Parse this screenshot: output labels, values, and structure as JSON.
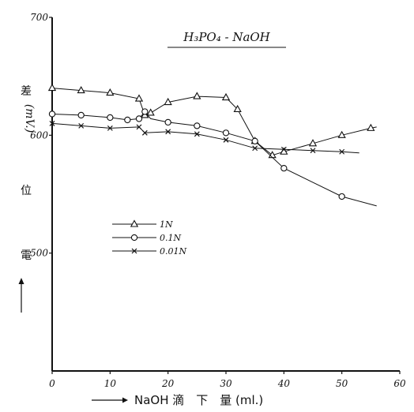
{
  "chart_data": {
    "type": "line",
    "title": "H₃PO₄ - NaOH",
    "ylabel_chars": [
      "差",
      "(mV.)",
      "位",
      "電"
    ],
    "xlabel": "NaOH 滴　下　量 (ml.)",
    "xlim": [
      0,
      60
    ],
    "ylim": [
      400,
      700
    ],
    "x_ticks": [
      0,
      10,
      20,
      30,
      40,
      50,
      60
    ],
    "y_ticks": [
      500,
      600,
      700
    ],
    "grid": false,
    "legend_position": "center-left",
    "series": [
      {
        "name": "1N",
        "marker": "triangle",
        "points": [
          [
            0,
            640
          ],
          [
            5,
            638
          ],
          [
            10,
            636
          ],
          [
            15,
            631
          ],
          [
            16,
            617
          ],
          [
            17,
            619
          ],
          [
            20,
            628
          ],
          [
            25,
            633
          ],
          [
            30,
            632
          ],
          [
            32,
            622
          ],
          [
            35,
            595
          ],
          [
            38,
            583
          ],
          [
            40,
            586
          ],
          [
            45,
            593
          ],
          [
            50,
            600
          ],
          [
            55,
            606
          ],
          [
            56,
            607
          ]
        ],
        "marked": [
          [
            0,
            640
          ],
          [
            5,
            638
          ],
          [
            10,
            636
          ],
          [
            15,
            631
          ],
          [
            16,
            617
          ],
          [
            17,
            619
          ],
          [
            20,
            628
          ],
          [
            25,
            633
          ],
          [
            30,
            632
          ],
          [
            32,
            622
          ],
          [
            35,
            595
          ],
          [
            38,
            583
          ],
          [
            40,
            586
          ],
          [
            45,
            593
          ],
          [
            50,
            600
          ],
          [
            55,
            606
          ]
        ]
      },
      {
        "name": "0.1N",
        "marker": "circle",
        "points": [
          [
            0,
            618
          ],
          [
            5,
            617
          ],
          [
            10,
            615
          ],
          [
            13,
            613
          ],
          [
            15,
            614
          ],
          [
            16,
            620
          ],
          [
            17,
            614
          ],
          [
            20,
            611
          ],
          [
            25,
            608
          ],
          [
            30,
            602
          ],
          [
            35,
            595
          ],
          [
            40,
            572
          ],
          [
            45,
            560
          ],
          [
            50,
            548
          ],
          [
            56,
            540
          ]
        ],
        "marked": [
          [
            0,
            618
          ],
          [
            5,
            617
          ],
          [
            10,
            615
          ],
          [
            13,
            613
          ],
          [
            15,
            614
          ],
          [
            16,
            620
          ],
          [
            20,
            611
          ],
          [
            25,
            608
          ],
          [
            30,
            602
          ],
          [
            35,
            595
          ],
          [
            40,
            572
          ],
          [
            50,
            548
          ]
        ]
      },
      {
        "name": "0.01N",
        "marker": "x",
        "points": [
          [
            0,
            610
          ],
          [
            5,
            608
          ],
          [
            10,
            606
          ],
          [
            15,
            607
          ],
          [
            16,
            602
          ],
          [
            20,
            603
          ],
          [
            25,
            601
          ],
          [
            30,
            596
          ],
          [
            35,
            589
          ],
          [
            40,
            588
          ],
          [
            45,
            587
          ],
          [
            50,
            586
          ],
          [
            53,
            585
          ]
        ],
        "marked": [
          [
            0,
            610
          ],
          [
            5,
            608
          ],
          [
            10,
            606
          ],
          [
            15,
            607
          ],
          [
            16,
            602
          ],
          [
            20,
            603
          ],
          [
            25,
            601
          ],
          [
            30,
            596
          ],
          [
            35,
            589
          ],
          [
            40,
            588
          ],
          [
            45,
            587
          ],
          [
            50,
            586
          ]
        ]
      }
    ],
    "legend": [
      {
        "marker": "triangle",
        "label": "1N"
      },
      {
        "marker": "circle",
        "label": "0.1N"
      },
      {
        "marker": "x",
        "label": "0.01N"
      }
    ]
  }
}
